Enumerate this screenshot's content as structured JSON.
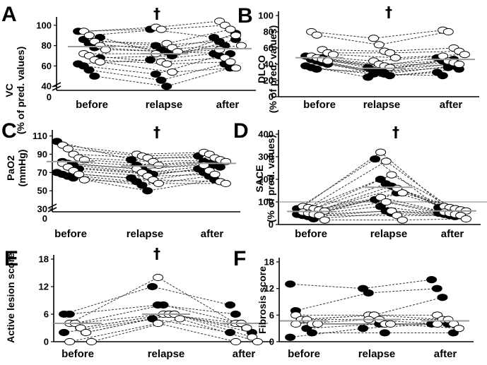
{
  "chart_data": [
    {
      "id": "A",
      "type": "scatter",
      "panel_letter": "A",
      "ylabel_lines": [
        "VC",
        "(% of pred. values)"
      ],
      "categories": [
        "before",
        "relapse",
        "after"
      ],
      "ylim": [
        36,
        104
      ],
      "yticks": [
        40,
        60,
        80,
        100
      ],
      "axis_break": true,
      "significance_marker": "†",
      "significance_at": "relapse",
      "medians": [
        79,
        72,
        77
      ],
      "series": [
        {
          "marker": "filled",
          "values": [
            [
              94,
              96,
              88
            ],
            [
              86,
              80,
              84
            ],
            [
              82,
              76,
              80
            ],
            [
              78,
              74,
              72
            ],
            [
              68,
              70,
              86
            ],
            [
              62,
              66,
              72
            ],
            [
              60,
              52,
              70
            ],
            [
              56,
              46,
              62
            ],
            [
              50,
              40,
              58
            ],
            [
              88,
              70,
              92
            ]
          ]
        },
        {
          "marker": "open",
          "values": [
            [
              94,
              98,
              104
            ],
            [
              90,
              96,
              100
            ],
            [
              84,
              82,
              96
            ],
            [
              80,
              78,
              90
            ],
            [
              76,
              74,
              80
            ],
            [
              72,
              72,
              76
            ],
            [
              70,
              64,
              68
            ],
            [
              66,
              62,
              64
            ],
            [
              64,
              54,
              58
            ]
          ]
        }
      ]
    },
    {
      "id": "B",
      "type": "scatter",
      "panel_letter": "B",
      "ylabel_lines": [
        "DLCO",
        "(% of pred. values)"
      ],
      "categories": [
        "before",
        "relapse",
        "after"
      ],
      "ylim": [
        0,
        100
      ],
      "yticks": [
        0,
        20,
        40,
        60,
        80,
        100
      ],
      "axis_break": false,
      "significance_marker": "†",
      "significance_at": "relapse",
      "medians": [
        48,
        35,
        46
      ],
      "series": [
        {
          "marker": "filled",
          "values": [
            [
              50,
              36,
              48
            ],
            [
              46,
              32,
              44
            ],
            [
              44,
              30,
              40
            ],
            [
              42,
              28,
              38
            ],
            [
              40,
              26,
              34
            ],
            [
              38,
              24,
              30
            ],
            [
              36,
              28,
              26
            ],
            [
              34,
              30,
              36
            ],
            [
              48,
              34,
              46
            ]
          ]
        },
        {
          "marker": "open",
          "values": [
            [
              80,
              72,
              82
            ],
            [
              76,
              64,
              80
            ],
            [
              58,
              56,
              60
            ],
            [
              54,
              54,
              56
            ],
            [
              52,
              48,
              52
            ],
            [
              50,
              44,
              50
            ],
            [
              48,
              40,
              44
            ],
            [
              46,
              38,
              42
            ],
            [
              44,
              36,
              40
            ]
          ]
        }
      ]
    },
    {
      "id": "C",
      "type": "scatter",
      "panel_letter": "C",
      "ylabel_lines": [
        "PaO2",
        "(mmHg)"
      ],
      "categories": [
        "before",
        "relapse",
        "after"
      ],
      "ylim": [
        27,
        112
      ],
      "yticks": [
        30,
        50,
        70,
        90,
        110
      ],
      "axis_break": true,
      "significance_marker": "†",
      "significance_at": "relapse",
      "medians": [
        82,
        77,
        80
      ],
      "series": [
        {
          "marker": "filled",
          "values": [
            [
              104,
              84,
              88
            ],
            [
              82,
              78,
              82
            ],
            [
              80,
              74,
              80
            ],
            [
              78,
              70,
              78
            ],
            [
              74,
              68,
              76
            ],
            [
              70,
              64,
              74
            ],
            [
              68,
              60,
              70
            ],
            [
              66,
              56,
              66
            ],
            [
              64,
              50,
              62
            ]
          ]
        },
        {
          "marker": "open",
          "values": [
            [
              100,
              90,
              92
            ],
            [
              96,
              88,
              90
            ],
            [
              90,
              86,
              86
            ],
            [
              86,
              82,
              84
            ],
            [
              84,
              78,
              82
            ],
            [
              80,
              74,
              78
            ],
            [
              76,
              70,
              72
            ],
            [
              72,
              66,
              68
            ],
            [
              68,
              62,
              60
            ],
            [
              62,
              58,
              58
            ]
          ]
        }
      ]
    },
    {
      "id": "D",
      "type": "scatter",
      "panel_letter": "D",
      "ylabel_lines": [
        "SACE",
        "(% of pred. values)"
      ],
      "categories": [
        "before",
        "relapse",
        "after"
      ],
      "ylim": [
        0,
        400
      ],
      "yticks": [
        0,
        100,
        200,
        300,
        400
      ],
      "axis_break": false,
      "reference_line": 100,
      "significance_marker": "†",
      "significance_at": "relapse",
      "medians": [
        58,
        165,
        60
      ],
      "series": [
        {
          "marker": "filled",
          "values": [
            [
              70,
              290,
              75
            ],
            [
              65,
              200,
              70
            ],
            [
              60,
              180,
              65
            ],
            [
              55,
              170,
              60
            ],
            [
              50,
              140,
              55
            ],
            [
              45,
              110,
              50
            ],
            [
              40,
              80,
              45
            ],
            [
              35,
              60,
              40
            ],
            [
              25,
              50,
              35
            ]
          ]
        },
        {
          "marker": "open",
          "values": [
            [
              80,
              320,
              80
            ],
            [
              75,
              280,
              75
            ],
            [
              70,
              220,
              70
            ],
            [
              65,
              160,
              65
            ],
            [
              60,
              140,
              60
            ],
            [
              55,
              120,
              55
            ],
            [
              50,
              100,
              50
            ],
            [
              45,
              60,
              45
            ],
            [
              40,
              40,
              40
            ],
            [
              20,
              20,
              25
            ]
          ]
        }
      ]
    },
    {
      "id": "E",
      "type": "scatter",
      "panel_letter": "E",
      "ylabel_lines": [
        "Active lesion score"
      ],
      "categories": [
        "before",
        "relapse",
        "after"
      ],
      "ylim": [
        0,
        18
      ],
      "yticks": [
        0,
        6,
        12,
        18
      ],
      "axis_break": false,
      "significance_marker": "†",
      "significance_at": "relapse",
      "medians": [
        4,
        6,
        4
      ],
      "series": [
        {
          "marker": "filled",
          "values": [
            [
              6,
              12,
              8
            ],
            [
              6,
              8,
              6
            ],
            [
              4,
              8,
              4
            ],
            [
              3,
              6,
              3
            ],
            [
              2,
              6,
              2
            ],
            [
              2,
              5,
              2
            ]
          ]
        },
        {
          "marker": "open",
          "values": [
            [
              4,
              14,
              4
            ],
            [
              4,
              6,
              4
            ],
            [
              3,
              6,
              3
            ],
            [
              2,
              6,
              1
            ],
            [
              0,
              5,
              0
            ],
            [
              0,
              4,
              0
            ]
          ]
        }
      ]
    },
    {
      "id": "F",
      "type": "scatter",
      "panel_letter": "F",
      "ylabel_lines": [
        "Fibrosis score"
      ],
      "categories": [
        "before",
        "relapse",
        "after"
      ],
      "ylim": [
        0,
        18
      ],
      "yticks": [
        0,
        6,
        12,
        18
      ],
      "axis_break": false,
      "significance_marker": "",
      "significance_at": "",
      "medians": [
        4.7,
        5,
        4.7
      ],
      "series": [
        {
          "marker": "filled",
          "values": [
            [
              13,
              12,
              14
            ],
            [
              7,
              11,
              12
            ],
            [
              5,
              6,
              10
            ],
            [
              3,
              4,
              4
            ],
            [
              2,
              2,
              2
            ],
            [
              1,
              3,
              4
            ]
          ]
        },
        {
          "marker": "open",
          "values": [
            [
              6,
              6,
              6
            ],
            [
              5,
              6,
              5
            ],
            [
              5,
              5,
              5
            ],
            [
              4,
              4,
              4
            ],
            [
              4,
              4,
              3
            ],
            [
              4,
              5,
              4
            ]
          ]
        }
      ]
    }
  ]
}
